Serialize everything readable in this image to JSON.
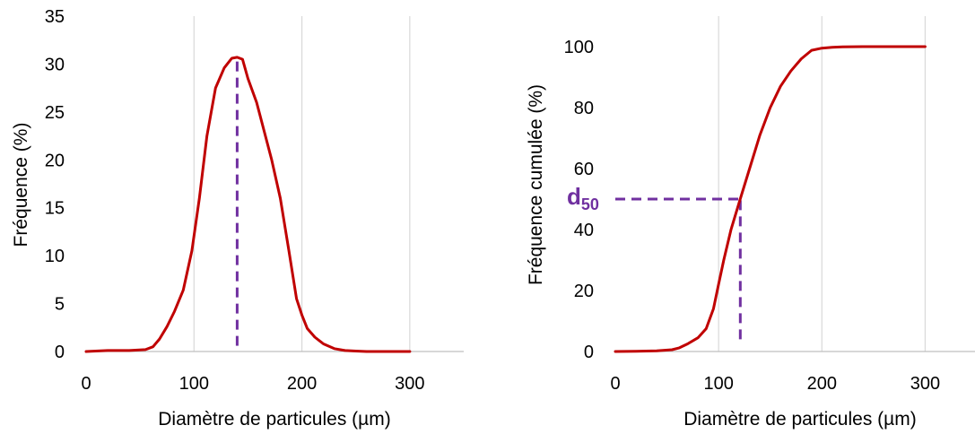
{
  "chart_data": [
    {
      "type": "line",
      "title": "",
      "xlabel": "Diamètre de particules (µm)",
      "ylabel": "Fréquence (%)",
      "xlim": [
        0,
        350
      ],
      "ylim": [
        0,
        35
      ],
      "xticks": [
        0,
        100,
        200,
        300
      ],
      "yticks": [
        0,
        5,
        10,
        15,
        20,
        25,
        30,
        35
      ],
      "grid": "vertical",
      "series": [
        {
          "color": "#c00000",
          "x": [
            0,
            20,
            40,
            55,
            62,
            68,
            75,
            82,
            90,
            98,
            105,
            112,
            120,
            128,
            135,
            140,
            145,
            150,
            158,
            165,
            172,
            180,
            188,
            195,
            200,
            205,
            212,
            220,
            230,
            240,
            250,
            260,
            280,
            300
          ],
          "y": [
            0,
            0.1,
            0.1,
            0.2,
            0.5,
            1.3,
            2.6,
            4.2,
            6.4,
            10.5,
            16,
            22.5,
            27.5,
            29.6,
            30.6,
            30.7,
            30.5,
            28.5,
            26,
            23,
            20,
            16,
            10.5,
            5.5,
            3.8,
            2.4,
            1.5,
            0.8,
            0.3,
            0.1,
            0.05,
            0,
            0,
            0
          ]
        }
      ],
      "reference_lines": [
        {
          "orientation": "vertical",
          "x": 140,
          "y_from": 0.6,
          "y_to": 30.7,
          "color": "#7030a0"
        }
      ]
    },
    {
      "type": "line",
      "title": "",
      "xlabel": "Diamètre de particules (µm)",
      "ylabel": "Fréquence cumulée (%)",
      "xlim": [
        0,
        350
      ],
      "ylim": [
        0,
        110
      ],
      "xticks": [
        0,
        100,
        200,
        300
      ],
      "yticks": [
        0,
        20,
        40,
        60,
        80,
        100
      ],
      "grid": "vertical",
      "series": [
        {
          "color": "#c00000",
          "x": [
            0,
            20,
            40,
            55,
            62,
            70,
            80,
            88,
            95,
            100,
            105,
            112,
            120,
            130,
            140,
            150,
            160,
            170,
            180,
            190,
            200,
            210,
            220,
            240,
            260,
            280,
            300
          ],
          "y": [
            0,
            0.1,
            0.2,
            0.6,
            1.2,
            2.5,
            4.5,
            7.5,
            14,
            22,
            30,
            40,
            49,
            60,
            71,
            80,
            87,
            92,
            96,
            98.8,
            99.5,
            99.8,
            99.9,
            100,
            100,
            100,
            100
          ]
        }
      ],
      "reference_lines": [
        {
          "orientation": "horizontal",
          "y": 50,
          "x_from": 0,
          "x_to": 121,
          "color": "#7030a0"
        },
        {
          "orientation": "vertical",
          "x": 121,
          "y_from": 4,
          "y_to": 50,
          "color": "#7030a0"
        }
      ],
      "annotation": {
        "text": "d",
        "subscript": "50",
        "color": "#7030a0"
      }
    }
  ]
}
